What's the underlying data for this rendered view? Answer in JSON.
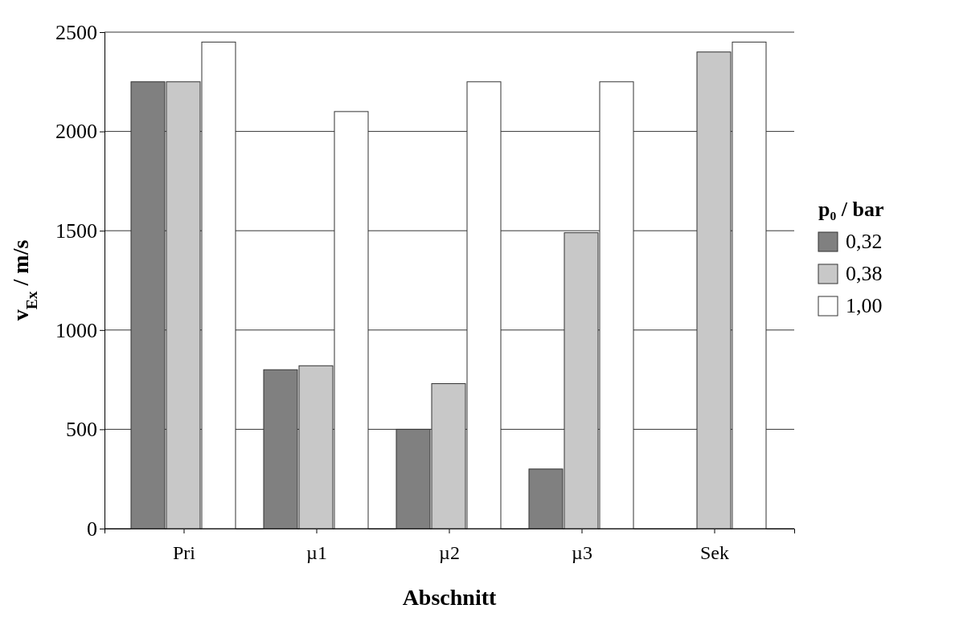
{
  "chart_data": {
    "type": "bar",
    "xlabel": "Abschnitt",
    "ylabel": "v$_{Ex}$ / m/s",
    "legend_title": "p₀ / bar",
    "categories": [
      "Pri",
      "µ1",
      "µ2",
      "µ3",
      "Sek"
    ],
    "series": [
      {
        "name": "0,32",
        "color": "#808080",
        "values": [
          2250,
          800,
          500,
          300,
          null
        ]
      },
      {
        "name": "0,38",
        "color": "#c8c8c8",
        "values": [
          2250,
          820,
          730,
          1490,
          2400
        ]
      },
      {
        "name": "1,00",
        "color": "#ffffff",
        "values": [
          2450,
          2100,
          2250,
          2250,
          2450
        ]
      }
    ],
    "ylim": [
      0,
      2500
    ],
    "yticks": [
      0,
      500,
      1000,
      1500,
      2000,
      2500
    ],
    "grid": "y",
    "legend": "right"
  }
}
